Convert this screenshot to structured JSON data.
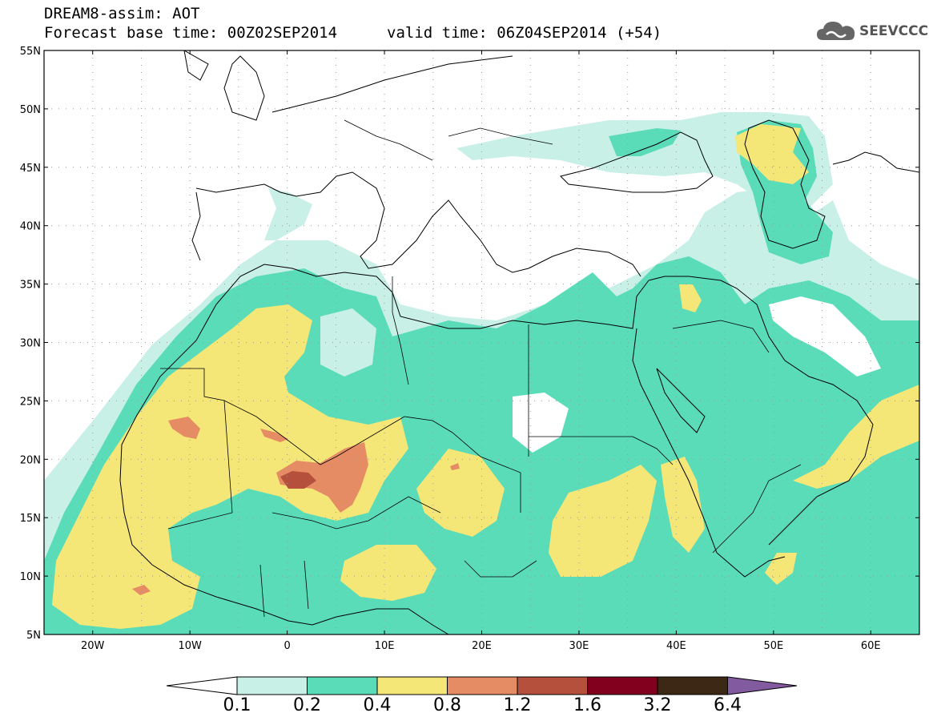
{
  "header": {
    "title": "DREAM8-assim: AOT",
    "base_time": "Forecast base time: 00Z02SEP2014",
    "valid_time": "valid time: 06Z04SEP2014 (+54)"
  },
  "logo": {
    "text": "SEEVCCC",
    "icon": "cloud-icon"
  },
  "map": {
    "lon_range": [
      -25,
      65
    ],
    "lat_range": [
      5,
      55
    ],
    "lat_labels": [
      "55N",
      "50N",
      "45N",
      "40N",
      "35N",
      "30N",
      "25N",
      "20N",
      "15N",
      "10N",
      "5N"
    ],
    "lon_labels": [
      "20W",
      "10W",
      "0",
      "10E",
      "20E",
      "30E",
      "40E",
      "50E",
      "60E"
    ],
    "grid": "dotted"
  },
  "colorbar": {
    "labels": [
      "0.1",
      "0.2",
      "0.4",
      "0.8",
      "1.2",
      "1.6",
      "3.2",
      "6.4"
    ],
    "colors": [
      "#ffffff",
      "#c8f0e6",
      "#5adcb9",
      "#f5e678",
      "#e68c64",
      "#b4503c",
      "#82001e",
      "#3c2814",
      "#825aa0"
    ]
  }
}
